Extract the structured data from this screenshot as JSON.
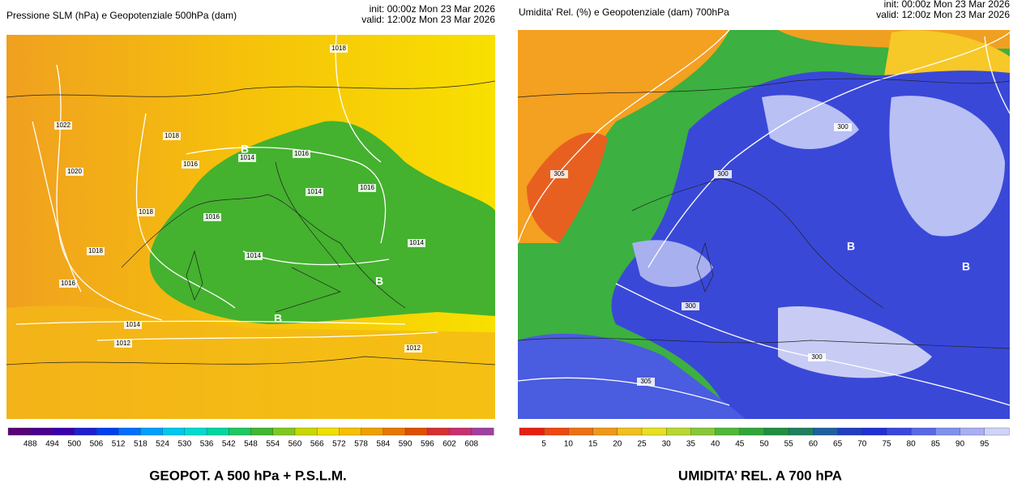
{
  "panels": [
    {
      "title": "Pressione SLM (hPa) e Geopotenziale 500hPa (dam)",
      "init": "init: 00:00z Mon 23 Mar 2026",
      "valid": "valid: 12:00z Mon 23 Mar 2026",
      "contour_labels": [
        "1018",
        "1022",
        "1020",
        "1018",
        "1016",
        "1014",
        "1016",
        "1014",
        "1016",
        "1016",
        "1018",
        "1018",
        "1016",
        "1014",
        "1014",
        "1014",
        "1012",
        "1012"
      ],
      "lows": [
        "B",
        "B",
        "B"
      ],
      "colorbar": [
        488,
        494,
        500,
        506,
        512,
        518,
        524,
        530,
        536,
        542,
        548,
        554,
        560,
        566,
        572,
        578,
        584,
        590,
        596,
        602,
        608
      ],
      "caption": "GEOPOT. A 500 hPa + P.S.L.M."
    },
    {
      "title": "Umidita' Rel. (%) e Geopotenziale (dam) 700hPa",
      "init": "init: 00:00z Mon 23 Mar 2026",
      "valid": "valid: 12:00z Mon 23 Mar 2026",
      "contour_labels": [
        "305",
        "300",
        "300",
        "300",
        "300",
        "305"
      ],
      "lows": [
        "B",
        "B"
      ],
      "colorbar": [
        5,
        10,
        15,
        20,
        25,
        30,
        35,
        40,
        45,
        50,
        55,
        60,
        65,
        70,
        75,
        80,
        85,
        90,
        95
      ],
      "caption": "UMIDITA’ REL. A 700 hPA"
    }
  ]
}
